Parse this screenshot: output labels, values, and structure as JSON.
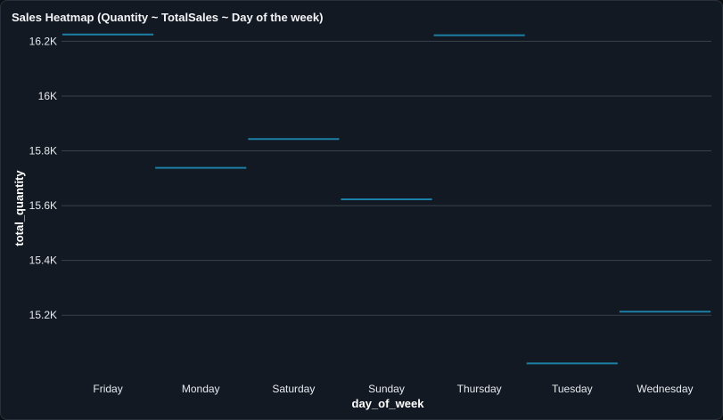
{
  "chart_data": {
    "type": "line",
    "title": "Sales Heatmap (Quantity ~ TotalSales ~ Day of the week)",
    "xlabel": "day_of_week",
    "ylabel": "total_quantity",
    "categories": [
      "Friday",
      "Monday",
      "Saturday",
      "Sunday",
      "Thursday",
      "Tuesday",
      "Wednesday"
    ],
    "values": [
      16225,
      15738,
      15843,
      15623,
      16222,
      15024,
      15213
    ],
    "ylim": [
      14970,
      16250
    ],
    "yticks": [
      15200,
      15400,
      15600,
      15800,
      16000,
      16200
    ],
    "ytick_labels": [
      "15.2K",
      "15.4K",
      "15.6K",
      "15.8K",
      "16K",
      "16.2K"
    ],
    "grid": true,
    "colors": {
      "series": "#1b7fa6",
      "grid": "#39414b",
      "text": "#e6e9ee"
    }
  }
}
